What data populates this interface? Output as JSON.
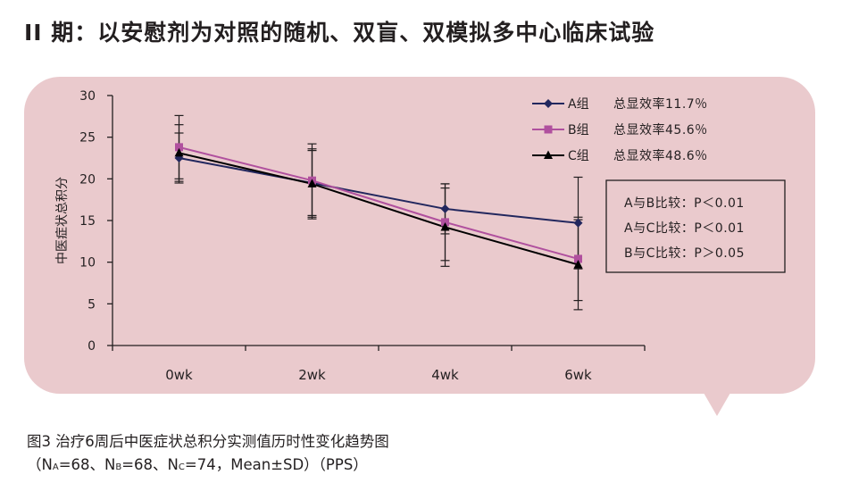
{
  "page": {
    "title": "II 期：以安慰剂为对照的随机、双盲、双模拟多中心临床试验",
    "caption_line1": "图3 治疗6周后中医症状总积分实测值历时性变化趋势图",
    "caption_line2": {
      "open": "（N",
      "sub_a": "A",
      "after_a": "=68、N",
      "sub_b": "B",
      "after_b": "=68、N",
      "sub_c": "C",
      "after_c": "=74，Mean±SD）（PPS）"
    },
    "panel_color": "#eacacd"
  },
  "chart_data": {
    "type": "line",
    "title": "",
    "xlabel": "",
    "ylabel": "中医症状总积分",
    "ylim": [
      0,
      30
    ],
    "yticks": [
      0,
      5,
      10,
      15,
      20,
      25,
      30
    ],
    "categories": [
      "0wk",
      "2wk",
      "4wk",
      "6wk"
    ],
    "grid": false,
    "legend_position": "top-right",
    "series": [
      {
        "name": "A组",
        "note": "总显效率11.7％",
        "color": "#22275e",
        "marker": "diamond",
        "values": [
          22.5,
          19.5,
          16.4,
          14.7
        ],
        "sd": [
          3.0,
          3.9,
          3.0,
          5.5
        ]
      },
      {
        "name": "B组",
        "note": "总显效率45.6％",
        "color": "#b0509e",
        "marker": "square",
        "values": [
          23.8,
          19.8,
          14.8,
          10.4
        ],
        "sd": [
          3.8,
          4.4,
          4.6,
          5.0
        ]
      },
      {
        "name": "C组",
        "note": "总显效率48.6％",
        "color": "#000000",
        "marker": "triangle",
        "values": [
          23.1,
          19.4,
          14.2,
          9.7
        ],
        "sd": [
          3.4,
          4.2,
          4.7,
          5.4
        ]
      }
    ],
    "annotations": [
      "A与B比较：P＜0.01",
      "A与C比较：P＜0.01",
      "B与C比较：P＞0.05"
    ]
  }
}
